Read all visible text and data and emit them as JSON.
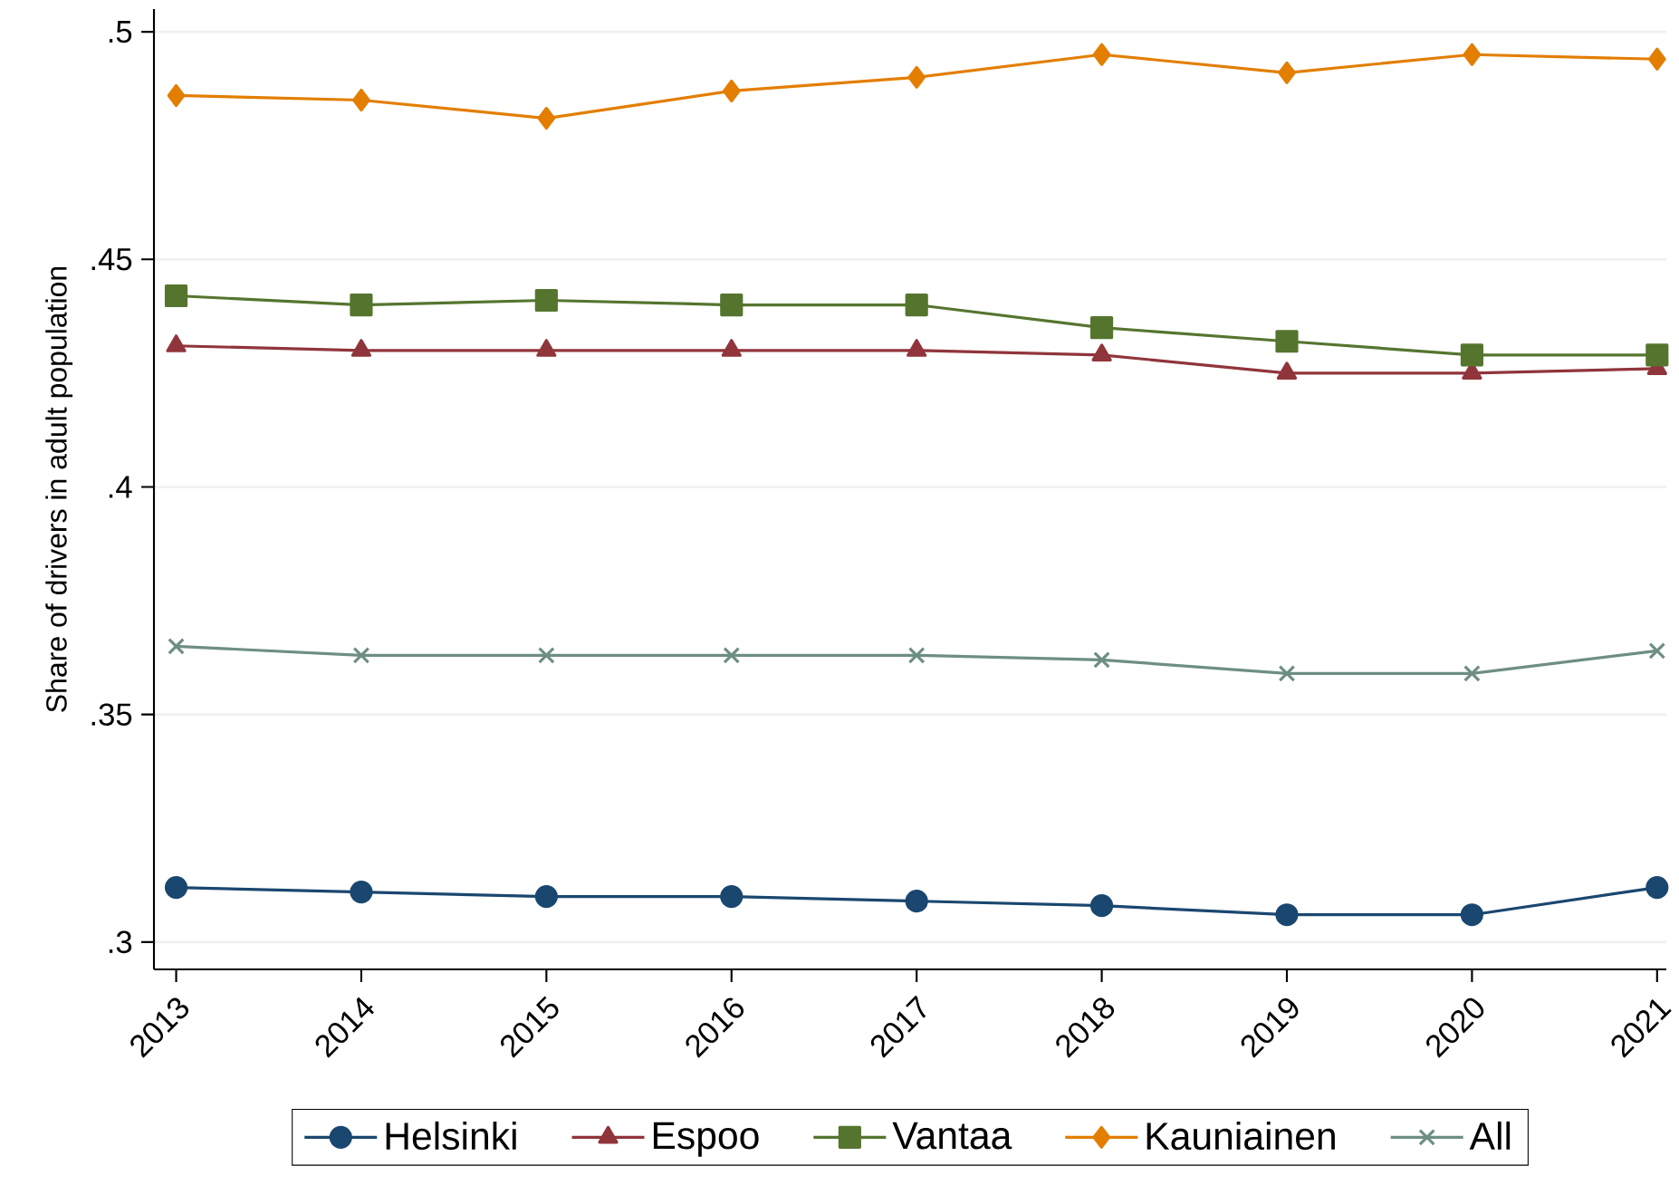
{
  "chart_data": {
    "type": "line",
    "ylabel": "Share of drivers in adult population",
    "x": [
      2013,
      2014,
      2015,
      2016,
      2017,
      2018,
      2019,
      2020,
      2021
    ],
    "xlim": [
      2012.88,
      2021.05
    ],
    "xticks": [
      2013,
      2014,
      2015,
      2016,
      2017,
      2018,
      2019,
      2020,
      2021
    ],
    "ylim": [
      0.294,
      0.505
    ],
    "yticks": [
      {
        "value": 0.3,
        "label": ".3"
      },
      {
        "value": 0.35,
        "label": ".35"
      },
      {
        "value": 0.4,
        "label": ".4"
      },
      {
        "value": 0.45,
        "label": ".45"
      },
      {
        "value": 0.5,
        "label": ".5"
      }
    ],
    "grid": "y",
    "legend": "bottom",
    "line_style": "solid",
    "series": [
      {
        "name": "Helsinki",
        "color": "#1a476f",
        "marker": "circle",
        "values": [
          0.312,
          0.311,
          0.31,
          0.31,
          0.309,
          0.308,
          0.306,
          0.306,
          0.312
        ]
      },
      {
        "name": "Espoo",
        "color": "#90353b",
        "marker": "triangle",
        "values": [
          0.431,
          0.43,
          0.43,
          0.43,
          0.43,
          0.429,
          0.425,
          0.425,
          0.426
        ]
      },
      {
        "name": "Vantaa",
        "color": "#55752f",
        "marker": "square",
        "values": [
          0.442,
          0.44,
          0.441,
          0.44,
          0.44,
          0.435,
          0.432,
          0.429,
          0.429
        ]
      },
      {
        "name": "Kauniainen",
        "color": "#e37e00",
        "marker": "diamond",
        "values": [
          0.486,
          0.485,
          0.481,
          0.487,
          0.49,
          0.495,
          0.491,
          0.495,
          0.494
        ]
      },
      {
        "name": "All",
        "color": "#6e8e84",
        "marker": "cross",
        "values": [
          0.365,
          0.363,
          0.363,
          0.363,
          0.363,
          0.362,
          0.359,
          0.359,
          0.364
        ]
      }
    ]
  }
}
